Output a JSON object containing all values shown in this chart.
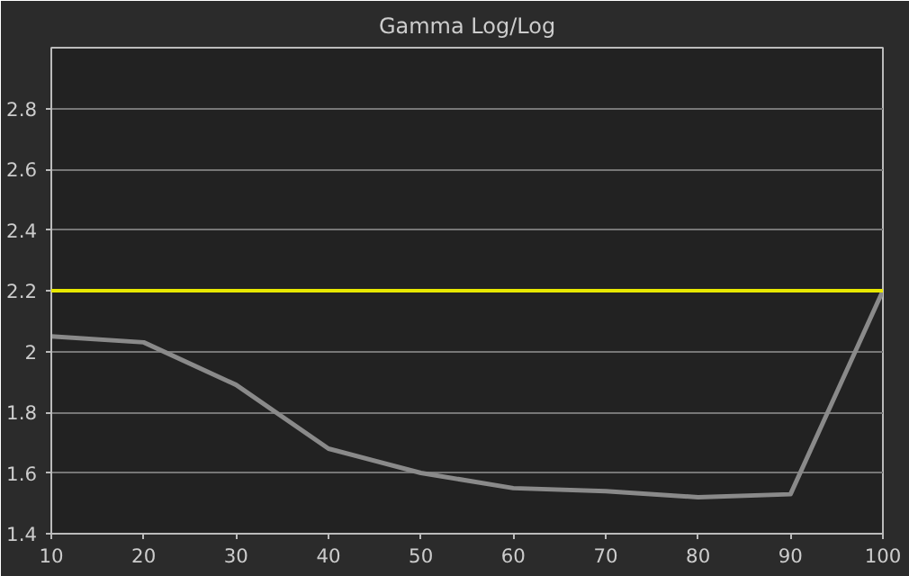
{
  "chart_data": {
    "type": "line",
    "title": "Gamma Log/Log",
    "x": [
      10,
      20,
      30,
      40,
      50,
      60,
      70,
      80,
      90,
      100
    ],
    "series": [
      {
        "color": "#8a8a8a",
        "values": [
          2.05,
          2.03,
          1.89,
          1.68,
          1.6,
          1.55,
          1.54,
          1.52,
          1.53,
          2.2
        ]
      }
    ],
    "xlim": [
      10,
      100
    ],
    "xticks": [
      10,
      20,
      30,
      40,
      50,
      60,
      70,
      80,
      90,
      100
    ],
    "ylim": [
      1.4,
      3.0
    ],
    "yticks": [
      1.4,
      1.6,
      1.8,
      2,
      2.2,
      2.4,
      2.6,
      2.8
    ],
    "ref_lines": [
      {
        "axis": "y",
        "value": 2.2,
        "color": "#e8e800"
      }
    ],
    "grid": "y",
    "marker": "none",
    "line_style": "solid"
  }
}
